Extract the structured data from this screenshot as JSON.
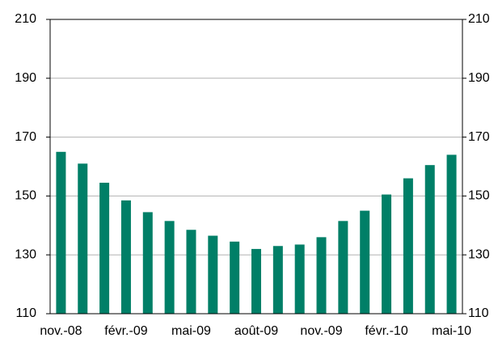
{
  "chart_data": {
    "type": "bar",
    "categories": [
      "nov.-08",
      null,
      null,
      "févr.-09",
      null,
      null,
      "mai-09",
      null,
      null,
      "août-09",
      null,
      null,
      "nov.-09",
      null,
      null,
      "févr.-10",
      null,
      null,
      "mai-10"
    ],
    "values": [
      165,
      161,
      154.5,
      148.5,
      144.5,
      141.5,
      138.5,
      136.5,
      134.5,
      132,
      133,
      133.5,
      136,
      141.5,
      145,
      150.5,
      156,
      160.5,
      164
    ],
    "color": "#007f67",
    "ylim": [
      110,
      210
    ],
    "yticks": [
      110,
      130,
      150,
      170,
      190,
      210
    ],
    "y2lim": [
      110,
      210
    ],
    "y2ticks": [
      110,
      130,
      150,
      170,
      190,
      210
    ],
    "grid": true
  }
}
